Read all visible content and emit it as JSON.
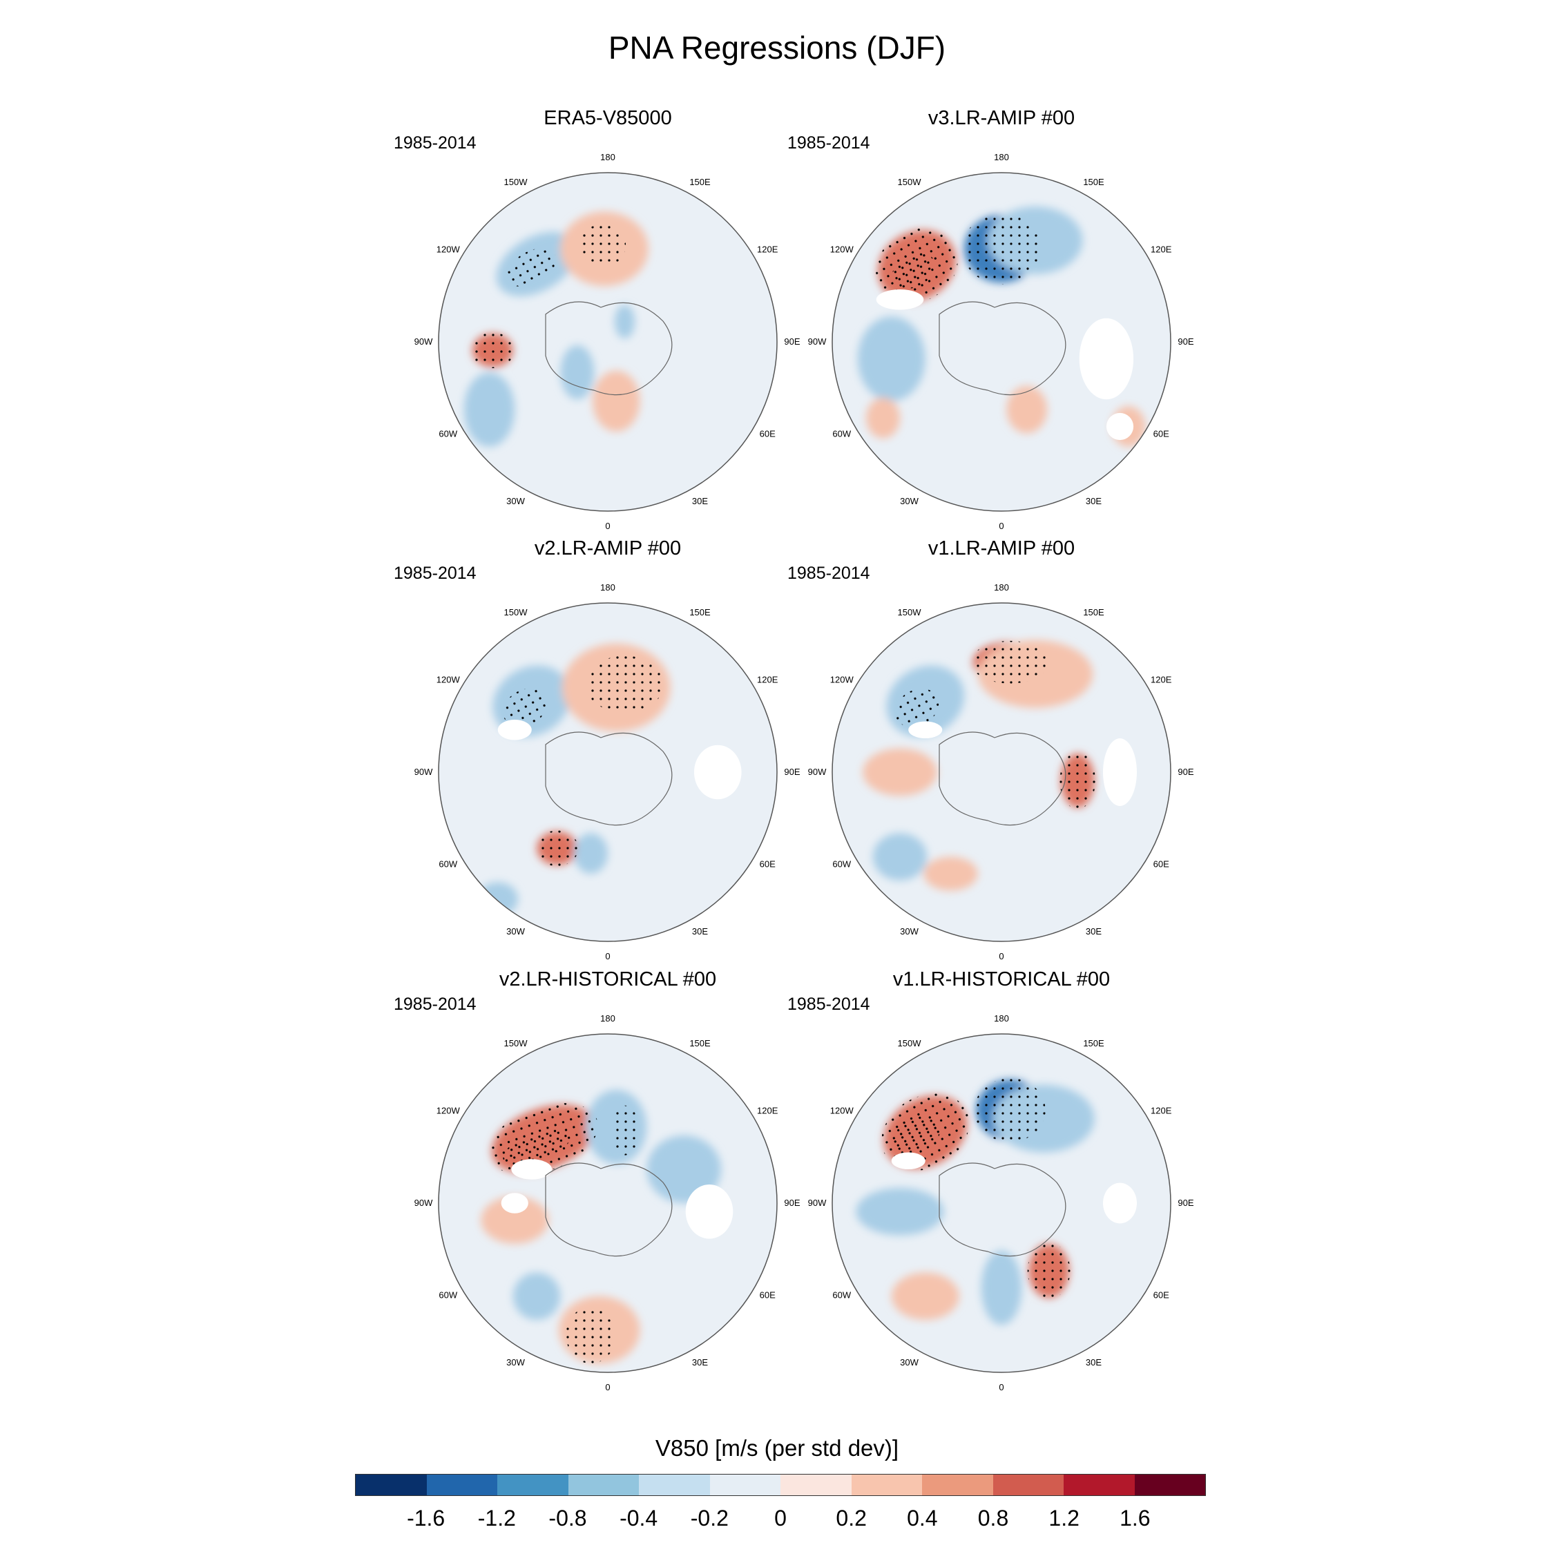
{
  "title": "PNA Regressions (DJF)",
  "panels": [
    {
      "title": "ERA5-V85000",
      "period": "1985-2014",
      "blobs": [
        [
          "neg3",
          -0.45,
          -0.44,
          0.15,
          0.09,
          -30
        ],
        [
          "neg1",
          -0.42,
          -0.46,
          0.26,
          0.16,
          -30
        ],
        [
          "pos3",
          -0.03,
          -0.57,
          0.13,
          0.12,
          0
        ],
        [
          "pos1",
          -0.02,
          -0.55,
          0.26,
          0.22,
          0
        ],
        [
          "pos2",
          -0.68,
          0.05,
          0.12,
          0.1,
          0
        ],
        [
          "neg1",
          -0.7,
          0.4,
          0.15,
          0.22,
          0
        ],
        [
          "neg1",
          -0.18,
          0.18,
          0.1,
          0.16,
          0
        ],
        [
          "pos1",
          0.05,
          0.35,
          0.14,
          0.18,
          0
        ],
        [
          "neg1",
          0.1,
          -0.12,
          0.06,
          0.1,
          0
        ]
      ],
      "landmask": []
    },
    {
      "title": "v3.LR-AMIP  #00",
      "period": "1985-2014",
      "blobs": [
        [
          "pos4",
          -0.52,
          -0.42,
          0.13,
          0.09,
          -30
        ],
        [
          "pos2",
          -0.5,
          -0.45,
          0.24,
          0.2,
          -30
        ],
        [
          "neg2",
          0.0,
          -0.55,
          0.22,
          0.2,
          0
        ],
        [
          "neg1",
          0.2,
          -0.6,
          0.28,
          0.2,
          0
        ],
        [
          "neg1",
          -0.65,
          0.1,
          0.2,
          0.25,
          0
        ],
        [
          "pos1",
          -0.7,
          0.45,
          0.1,
          0.12,
          0
        ],
        [
          "pos1",
          0.15,
          0.4,
          0.12,
          0.14,
          0
        ],
        [
          "pos1",
          0.75,
          0.5,
          0.1,
          0.12,
          0
        ]
      ],
      "landmask": [
        [
          -0.6,
          -0.25,
          0.14,
          0.06
        ],
        [
          0.62,
          0.1,
          0.16,
          0.24
        ],
        [
          0.7,
          0.5,
          0.08,
          0.08
        ]
      ]
    },
    {
      "title": "v2.LR-AMIP  #00",
      "period": "1985-2014",
      "blobs": [
        [
          "neg3",
          -0.49,
          -0.38,
          0.13,
          0.1,
          -30
        ],
        [
          "neg1",
          -0.45,
          -0.42,
          0.24,
          0.2,
          -30
        ],
        [
          "pos2",
          0.1,
          -0.52,
          0.22,
          0.16,
          0
        ],
        [
          "pos1",
          0.05,
          -0.5,
          0.32,
          0.26,
          0
        ],
        [
          "pos2",
          -0.3,
          0.45,
          0.12,
          0.1,
          0
        ],
        [
          "neg1",
          -0.1,
          0.48,
          0.1,
          0.12,
          0
        ],
        [
          "neg1",
          -0.65,
          0.75,
          0.12,
          0.1,
          0
        ]
      ],
      "landmask": [
        [
          -0.55,
          -0.25,
          0.1,
          0.06
        ],
        [
          0.65,
          0.0,
          0.14,
          0.16
        ]
      ]
    },
    {
      "title": "v1.LR-AMIP  #00",
      "period": "1985-2014",
      "blobs": [
        [
          "neg3",
          -0.5,
          -0.38,
          0.13,
          0.1,
          -30
        ],
        [
          "neg1",
          -0.45,
          -0.42,
          0.24,
          0.2,
          -30
        ],
        [
          "pos2",
          0.05,
          -0.65,
          0.22,
          0.12,
          0
        ],
        [
          "pos1",
          0.2,
          -0.58,
          0.34,
          0.2,
          0
        ],
        [
          "pos1",
          -0.6,
          0.0,
          0.22,
          0.14,
          0
        ],
        [
          "pos2",
          0.45,
          0.05,
          0.1,
          0.16,
          0
        ],
        [
          "neg1",
          -0.6,
          0.5,
          0.16,
          0.14,
          0
        ],
        [
          "pos1",
          -0.3,
          0.6,
          0.16,
          0.1,
          0
        ]
      ],
      "landmask": [
        [
          0.7,
          0.0,
          0.1,
          0.2
        ],
        [
          -0.45,
          -0.25,
          0.1,
          0.05
        ]
      ]
    },
    {
      "title": "v2.LR-HISTORICAL  #00",
      "period": "1985-2014",
      "blobs": [
        [
          "pos4",
          -0.42,
          -0.33,
          0.2,
          0.08,
          -20
        ],
        [
          "pos2",
          -0.38,
          -0.38,
          0.32,
          0.18,
          -20
        ],
        [
          "neg3",
          0.1,
          -0.43,
          0.08,
          0.14,
          0
        ],
        [
          "neg1",
          0.05,
          -0.45,
          0.18,
          0.22,
          0
        ],
        [
          "neg1",
          0.45,
          -0.2,
          0.22,
          0.2,
          0
        ],
        [
          "pos2",
          -0.1,
          0.78,
          0.14,
          0.16,
          0
        ],
        [
          "pos1",
          -0.05,
          0.75,
          0.24,
          0.2,
          0
        ],
        [
          "neg1",
          -0.42,
          0.55,
          0.14,
          0.14,
          0
        ],
        [
          "pos1",
          -0.55,
          0.1,
          0.2,
          0.14,
          0
        ]
      ],
      "landmask": [
        [
          -0.45,
          -0.2,
          0.12,
          0.06
        ],
        [
          0.6,
          0.05,
          0.14,
          0.16
        ],
        [
          -0.55,
          0.0,
          0.08,
          0.06
        ]
      ]
    },
    {
      "title": "v1.LR-HISTORICAL  #00",
      "period": "1985-2014",
      "blobs": [
        [
          "pos4",
          -0.5,
          -0.4,
          0.14,
          0.1,
          -30
        ],
        [
          "pos2",
          -0.45,
          -0.42,
          0.26,
          0.2,
          -30
        ],
        [
          "neg2",
          0.05,
          -0.55,
          0.2,
          0.18,
          0
        ],
        [
          "neg1",
          0.25,
          -0.5,
          0.3,
          0.2,
          0
        ],
        [
          "neg1",
          -0.6,
          0.05,
          0.26,
          0.14,
          0
        ],
        [
          "pos2",
          0.28,
          0.4,
          0.12,
          0.16,
          0
        ],
        [
          "pos1",
          -0.45,
          0.55,
          0.2,
          0.14,
          0
        ],
        [
          "neg1",
          0.0,
          0.5,
          0.12,
          0.22,
          0
        ]
      ],
      "landmask": [
        [
          -0.55,
          -0.25,
          0.1,
          0.05
        ],
        [
          0.7,
          0.0,
          0.1,
          0.12
        ]
      ]
    }
  ],
  "lon_labels": [
    "180",
    "150E",
    "120E",
    "90E",
    "60E",
    "30E",
    "0",
    "30W",
    "60W",
    "90W",
    "120W",
    "150W"
  ],
  "colorbar": {
    "title": "V850 [m/s (per std dev)]",
    "levels": [
      "-1.6",
      "-1.2",
      "-0.8",
      "-0.4",
      "-0.2",
      "0",
      "0.2",
      "0.4",
      "0.8",
      "1.2",
      "1.6"
    ],
    "colors": [
      "#08306b",
      "#2166ac",
      "#4393c3",
      "#92c5de",
      "#c5dff0",
      "#e6eef5",
      "#fbe6df",
      "#f8c5ae",
      "#eb9a7d",
      "#d25c4f",
      "#b2182b",
      "#67001f"
    ]
  },
  "palette": {
    "neg3": "#1b4f95",
    "neg2": "#3c7fbd",
    "neg1": "#a8cde6",
    "pos1": "#f5c3ad",
    "pos2": "#de7361",
    "pos3": "#c0392b",
    "pos4": "#8e0a20",
    "ocean": "#eaf0f6",
    "land": "#ffffff"
  }
}
